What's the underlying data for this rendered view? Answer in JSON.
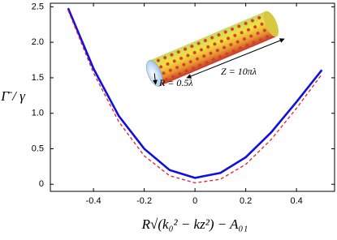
{
  "chart_data": {
    "type": "line",
    "x": [
      -0.5,
      -0.4,
      -0.3,
      -0.2,
      -0.1,
      0,
      0.1,
      0.2,
      0.3,
      0.4,
      0.5
    ],
    "series": [
      {
        "color": "#1010e0",
        "dash": false,
        "values": [
          2.48,
          1.63,
          0.96,
          0.5,
          0.2,
          0.09,
          0.16,
          0.38,
          0.73,
          1.16,
          1.61
        ]
      },
      {
        "color": "#e0202a",
        "dash": true,
        "values": [
          2.45,
          1.57,
          0.88,
          0.4,
          0.12,
          0.02,
          0.07,
          0.28,
          0.63,
          1.07,
          1.55
        ]
      }
    ],
    "xlim": [
      -0.57,
      0.55
    ],
    "ylim": [
      -0.1,
      2.55
    ],
    "xticks": [
      -0.4,
      -0.2,
      0,
      0.2,
      0.4
    ],
    "yticks": [
      0,
      0.5,
      {
        "value": 1,
        "label": "1.0"
      },
      1.5,
      {
        "value": 2,
        "label": "2.0"
      },
      2.5
    ],
    "xlabel": "R√(k₀² − kz²) − A₀₁",
    "ylabel": "Γ̄ / γ",
    "annotations": [
      "R = 0.5λ",
      "Z = 10πλ"
    ]
  }
}
